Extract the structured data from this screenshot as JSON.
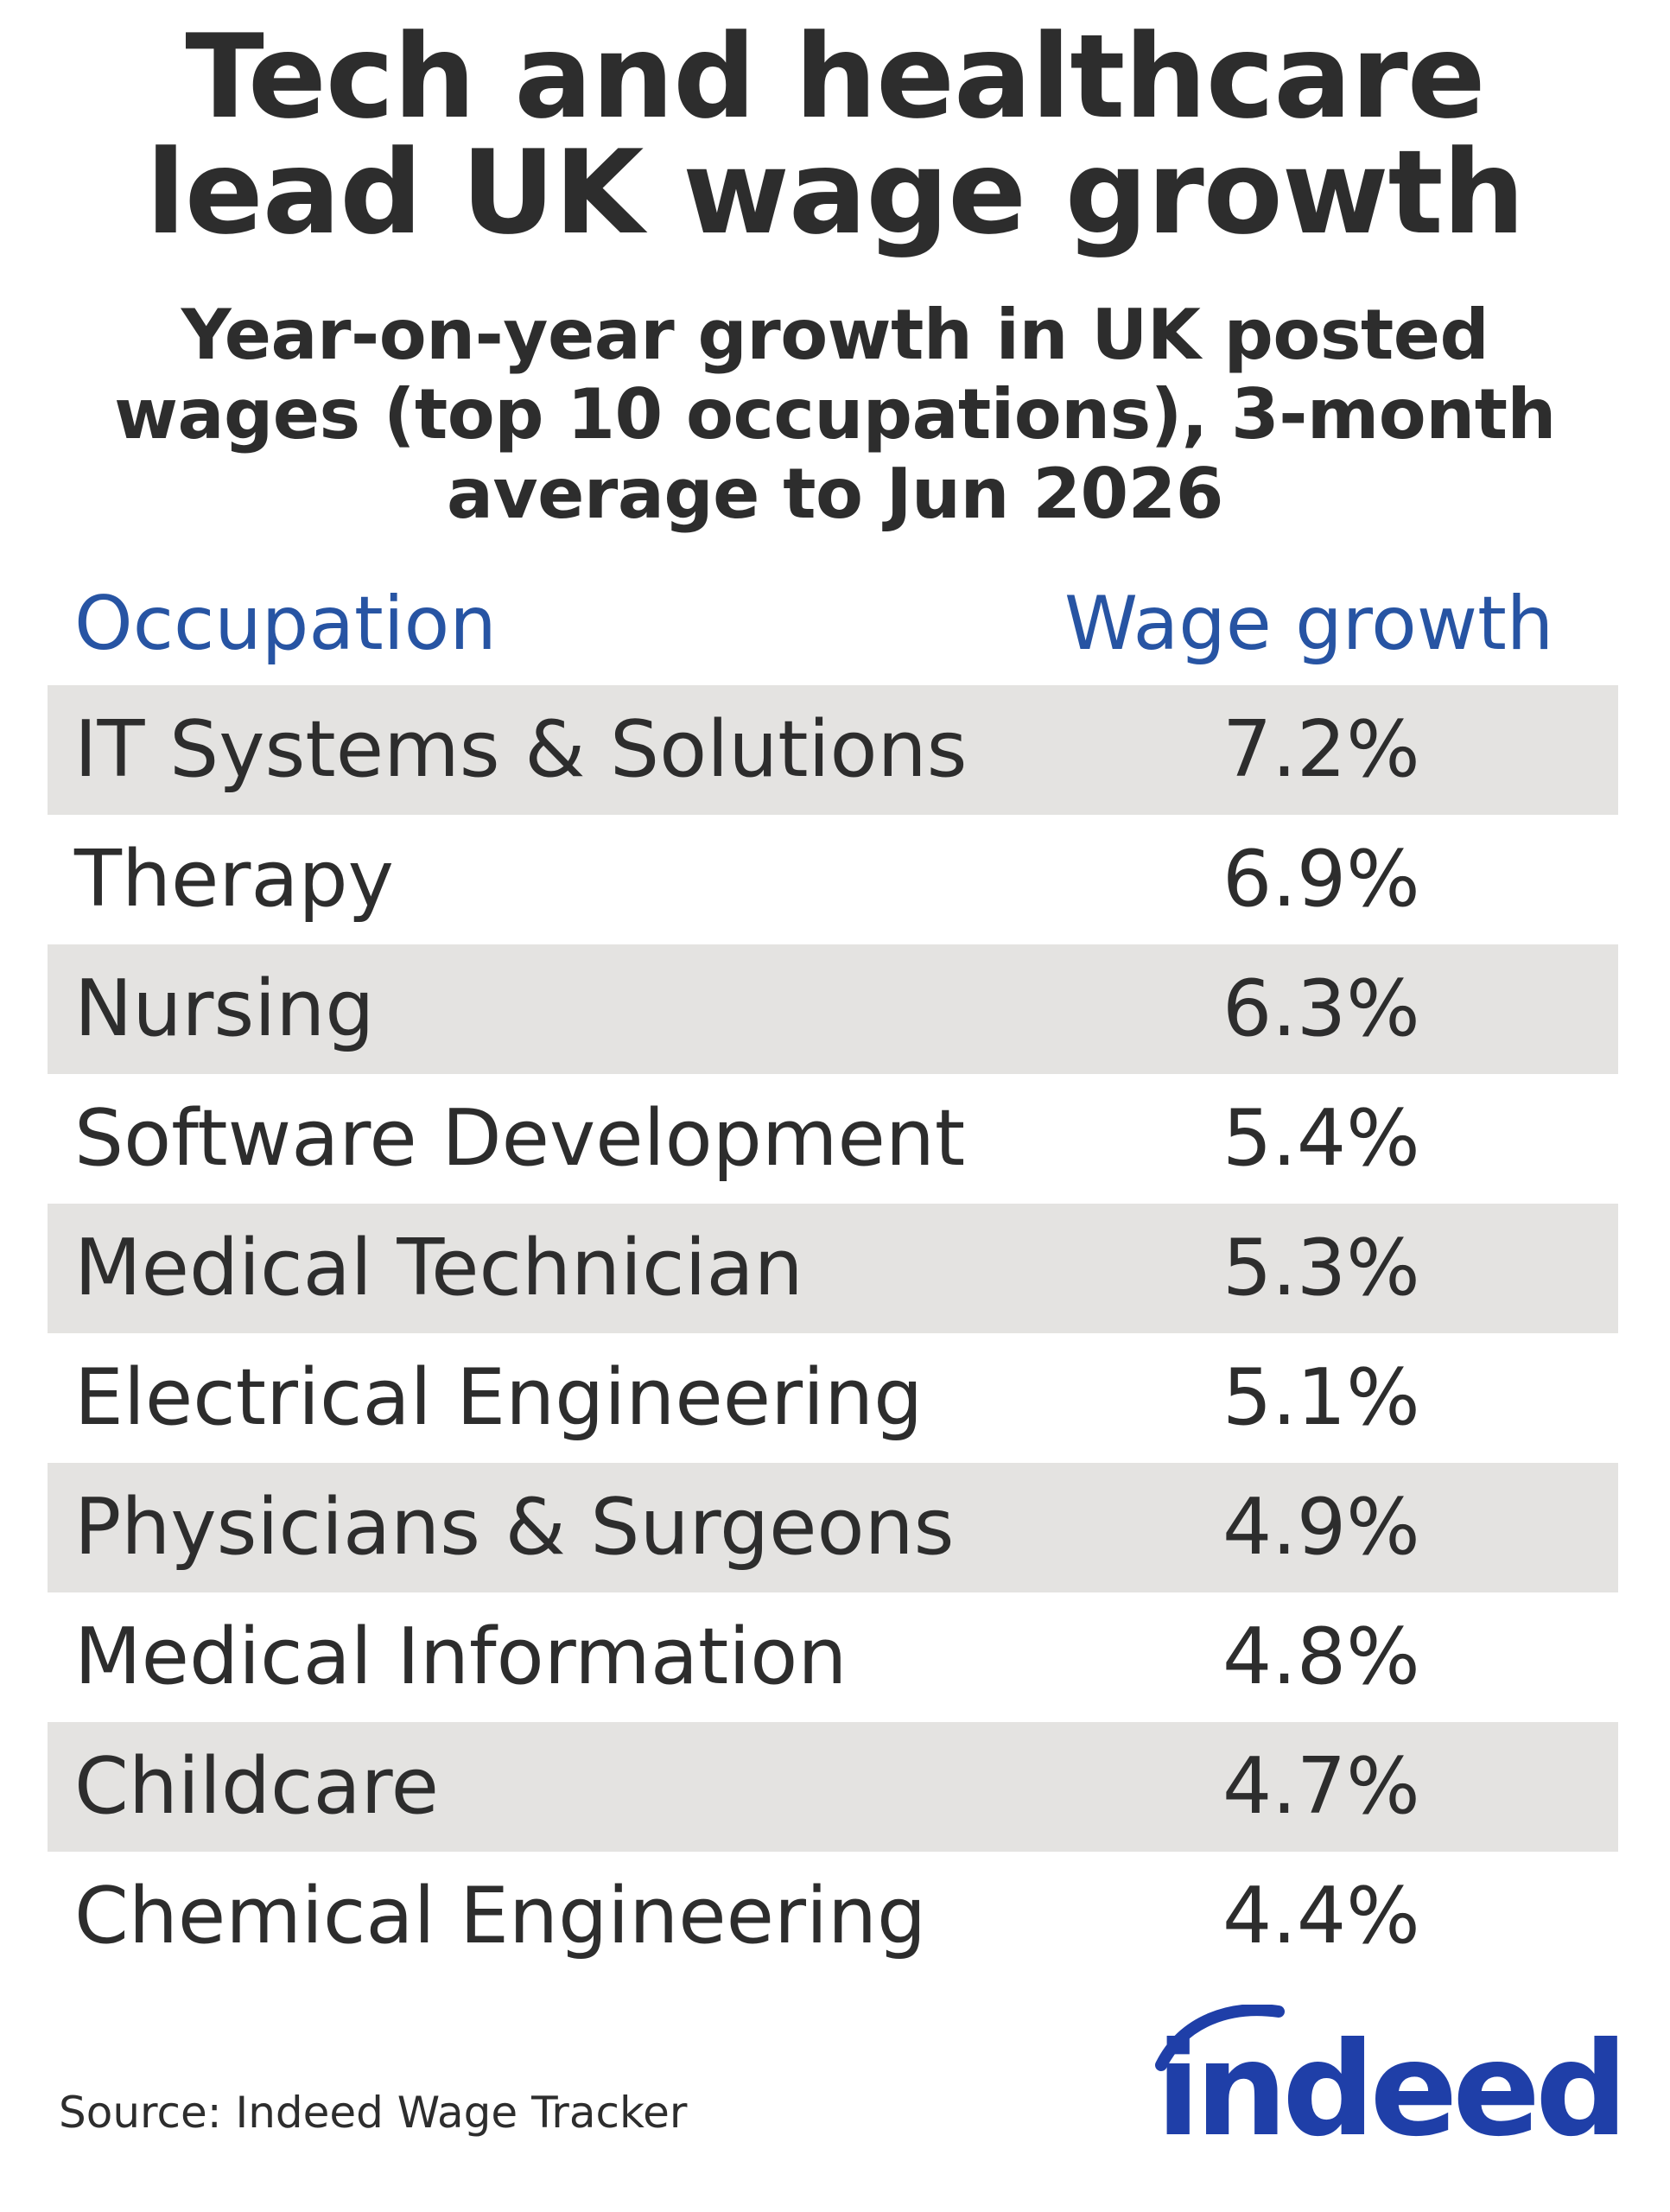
{
  "title_lines": [
    "Tech and healthcare",
    "lead UK wage growth"
  ],
  "subtitle_lines": [
    "Year-on-year growth in UK posted",
    "wages (top 10 occupations), 3-month",
    "average to Jun 2026"
  ],
  "colors": {
    "header_blue": "#2754a3",
    "shade": "#e4e3e1",
    "text": "#2d2d2d",
    "logo_blue": "#1f3fa8"
  },
  "chart_data": {
    "type": "table",
    "columns": [
      "Occupation",
      "Wage growth"
    ],
    "rows": [
      {
        "occupation": "IT Systems & Solutions",
        "growth": "7.2%"
      },
      {
        "occupation": "Therapy",
        "growth": "6.9%"
      },
      {
        "occupation": "Nursing",
        "growth": "6.3%"
      },
      {
        "occupation": "Software Development",
        "growth": "5.4%"
      },
      {
        "occupation": "Medical Technician",
        "growth": "5.3%"
      },
      {
        "occupation": "Electrical Engineering",
        "growth": "5.1%"
      },
      {
        "occupation": "Physicians & Surgeons",
        "growth": "4.9%"
      },
      {
        "occupation": "Medical Information",
        "growth": "4.8%"
      },
      {
        "occupation": "Childcare",
        "growth": "4.7%"
      },
      {
        "occupation": "Chemical Engineering",
        "growth": "4.4%"
      }
    ]
  },
  "source": "Source: Indeed Wage Tracker",
  "logo_text": "indeed"
}
